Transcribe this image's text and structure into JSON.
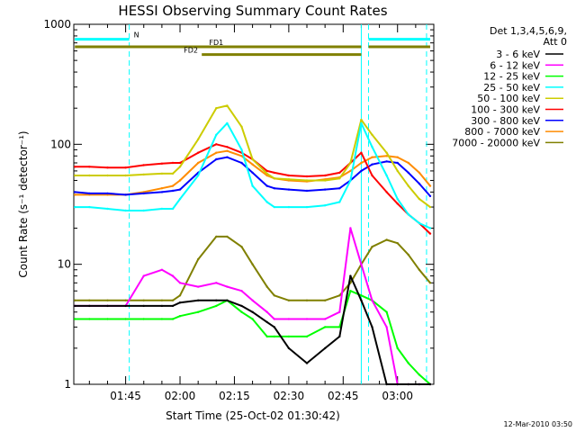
{
  "chart_data": {
    "type": "line",
    "title": "HESSI Observing Summary Count Rates",
    "xlabel": "Start Time (25-Oct-02 01:30:42)",
    "ylabel": "Count Rate (s⁻¹ detector⁻¹)",
    "yscale": "log",
    "ylim": [
      1,
      1000
    ],
    "xlim": [
      "01:30:42",
      "03:10:00"
    ],
    "y_ticks": [
      "1",
      "10",
      "100",
      "1000"
    ],
    "x_ticks": [
      "01:45",
      "02:00",
      "02:15",
      "02:30",
      "02:45",
      "03:00"
    ],
    "legend_header": [
      "Det 1,3,4,5,6,9,",
      "Att 0"
    ],
    "legend_position": "right",
    "footer": "12-Mar-2010 03:50",
    "x": [
      "01:31",
      "01:35",
      "01:40",
      "01:45",
      "01:50",
      "01:55",
      "01:58",
      "02:00",
      "02:05",
      "02:10",
      "02:13",
      "02:17",
      "02:20",
      "02:24",
      "02:26",
      "02:30",
      "02:35",
      "02:40",
      "02:44",
      "02:47",
      "02:50",
      "02:53",
      "02:57",
      "03:00",
      "03:03",
      "03:06",
      "03:09"
    ],
    "series": [
      {
        "name": "3 - 6 keV",
        "color": "#000000",
        "values": [
          4.5,
          4.5,
          4.5,
          4.5,
          4.5,
          4.5,
          4.5,
          4.8,
          5,
          5,
          5,
          4.5,
          4,
          3.3,
          3,
          2,
          1.5,
          2,
          2.5,
          8,
          5,
          3,
          1,
          1,
          1,
          1,
          1
        ]
      },
      {
        "name": "6 - 12 keV",
        "color": "#ff00ff",
        "values": [
          4.5,
          4.5,
          4.5,
          4.5,
          8,
          9,
          8,
          7,
          6.5,
          7,
          6.5,
          6,
          5,
          4,
          3.5,
          3.5,
          3.5,
          3.5,
          4,
          20,
          10,
          5,
          3,
          1,
          1,
          1,
          1
        ]
      },
      {
        "name": "12 - 25 keV",
        "color": "#00ff00",
        "values": [
          3.5,
          3.5,
          3.5,
          3.5,
          3.5,
          3.5,
          3.5,
          3.7,
          4,
          4.5,
          5,
          4,
          3.5,
          2.5,
          2.5,
          2.5,
          2.5,
          3,
          3,
          6,
          5.5,
          5,
          4,
          2,
          1.5,
          1.2,
          1
        ]
      },
      {
        "name": "25 - 50 keV",
        "color": "#00ffff",
        "values": [
          30,
          30,
          29,
          28,
          28,
          29,
          29,
          35,
          55,
          120,
          150,
          90,
          45,
          33,
          30,
          30,
          30,
          31,
          33,
          50,
          150,
          95,
          55,
          35,
          26,
          22,
          20
        ]
      },
      {
        "name": "50 - 100 keV",
        "color": "#cccc00",
        "values": [
          55,
          55,
          55,
          55,
          56,
          57,
          57,
          65,
          110,
          200,
          210,
          140,
          75,
          57,
          52,
          51,
          50,
          50,
          52,
          70,
          160,
          120,
          85,
          60,
          45,
          35,
          30
        ]
      },
      {
        "name": "100 - 300 keV",
        "color": "#ff0000",
        "values": [
          65,
          65,
          64,
          64,
          67,
          69,
          70,
          70,
          85,
          100,
          95,
          85,
          75,
          60,
          58,
          55,
          54,
          55,
          58,
          70,
          85,
          55,
          40,
          32,
          26,
          22,
          18
        ]
      },
      {
        "name": "300 - 800 keV",
        "color": "#0000ff",
        "values": [
          40,
          39,
          39,
          38,
          39,
          40,
          41,
          42,
          58,
          75,
          78,
          70,
          58,
          45,
          43,
          42,
          41,
          42,
          43,
          50,
          60,
          68,
          72,
          70,
          58,
          47,
          37
        ]
      },
      {
        "name": "800 - 7000 keV",
        "color": "#ff8c00",
        "values": [
          38,
          38,
          38,
          38,
          40,
          43,
          45,
          50,
          70,
          85,
          88,
          80,
          68,
          55,
          52,
          50,
          49,
          51,
          53,
          60,
          70,
          78,
          80,
          78,
          70,
          58,
          45
        ]
      },
      {
        "name": "7000 - 20000 keV",
        "color": "#808000",
        "values": [
          5,
          5,
          5,
          5,
          5,
          5,
          5,
          5.5,
          11,
          17,
          17,
          14,
          10,
          6.5,
          5.5,
          5,
          5,
          5,
          5.5,
          7,
          10,
          14,
          16,
          15,
          12,
          9,
          7
        ]
      }
    ],
    "state_bars": [
      {
        "label": "N",
        "color": "#00ffff",
        "y": 750,
        "segments": [
          [
            "01:31",
            "01:46"
          ],
          [
            "02:52",
            "03:09"
          ]
        ]
      },
      {
        "label": "FD1",
        "color": "#808000",
        "y": 650,
        "segments": [
          [
            "01:31",
            "02:50"
          ],
          [
            "02:52",
            "03:09"
          ]
        ]
      },
      {
        "label": "FD2",
        "color": "#808000",
        "y": 560,
        "segments": [
          [
            "02:06",
            "02:50"
          ]
        ]
      }
    ],
    "dashed_markers": {
      "color": "#00ffff",
      "x": [
        "01:46",
        "02:52",
        "03:08"
      ]
    },
    "solid_markers": {
      "color": "#00ffff",
      "x": [
        "02:50"
      ]
    }
  }
}
